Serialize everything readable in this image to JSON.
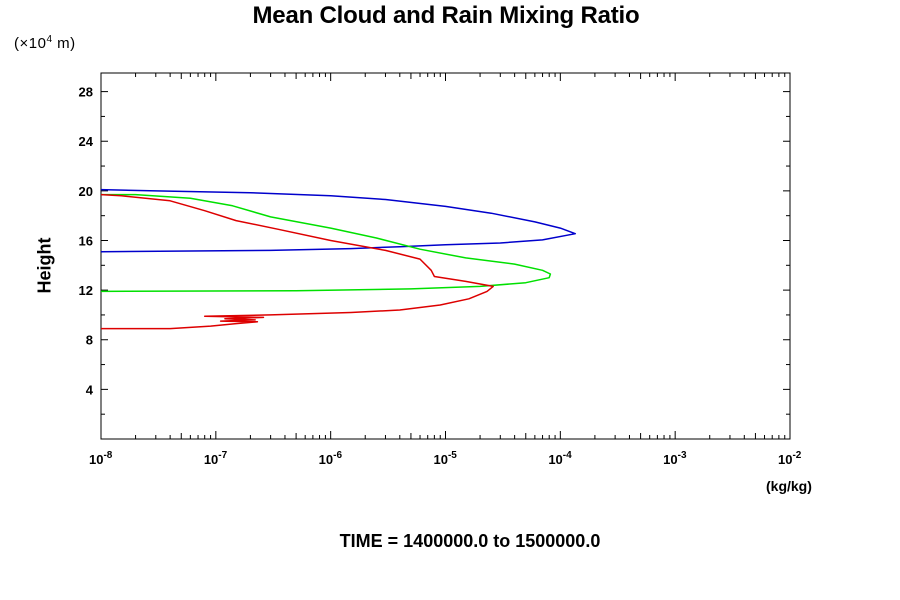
{
  "chart_data": {
    "type": "line",
    "title": "Mean Cloud and Rain Mixing Ratio",
    "ylabel": "Height",
    "y_unit_label": "(×10",
    "y_unit_exp": "4",
    "y_unit_tail": " m)",
    "xlabel_unit": "(kg/kg)",
    "footer": "TIME = 1400000.0 to 1500000.0",
    "x_scale": "log",
    "xlim": [
      1e-08,
      0.01
    ],
    "ylim": [
      0,
      29.5
    ],
    "y_ticks": [
      4,
      8,
      12,
      16,
      20,
      24,
      28
    ],
    "x_ticks": [
      {
        "base": "10",
        "exp": "-8",
        "value": 1e-08
      },
      {
        "base": "10",
        "exp": "-7",
        "value": 1e-07
      },
      {
        "base": "10",
        "exp": "-6",
        "value": 1e-06
      },
      {
        "base": "10",
        "exp": "-5",
        "value": 1e-05
      },
      {
        "base": "10",
        "exp": "-4",
        "value": 0.0001
      },
      {
        "base": "10",
        "exp": "-3",
        "value": 0.001
      },
      {
        "base": "10",
        "exp": "-2",
        "value": 0.01
      }
    ],
    "grid": false,
    "legend": "none",
    "series": [
      {
        "color": "#0000cc",
        "points": [
          [
            1e-08,
            15.1
          ],
          [
            3e-07,
            15.2
          ],
          [
            1.5e-06,
            15.35
          ],
          [
            4e-06,
            15.5
          ],
          [
            1e-05,
            15.65
          ],
          [
            3e-05,
            15.8
          ],
          [
            7e-05,
            16.05
          ],
          [
            0.000135,
            16.55
          ],
          [
            0.0001,
            17.0
          ],
          [
            6e-05,
            17.5
          ],
          [
            2.5e-05,
            18.2
          ],
          [
            1e-05,
            18.75
          ],
          [
            3e-06,
            19.3
          ],
          [
            1e-06,
            19.6
          ],
          [
            2e-07,
            19.85
          ],
          [
            3e-08,
            20.0
          ],
          [
            1e-08,
            20.1
          ]
        ]
      },
      {
        "color": "#00e000",
        "points": [
          [
            1e-08,
            11.9
          ],
          [
            5e-07,
            11.95
          ],
          [
            5e-06,
            12.1
          ],
          [
            2e-05,
            12.3
          ],
          [
            5e-05,
            12.6
          ],
          [
            8e-05,
            13.0
          ],
          [
            8.2e-05,
            13.3
          ],
          [
            7e-05,
            13.6
          ],
          [
            4e-05,
            14.1
          ],
          [
            1.5e-05,
            14.6
          ],
          [
            6e-06,
            15.3
          ],
          [
            2.5e-06,
            16.2
          ],
          [
            1e-06,
            17.0
          ],
          [
            3e-07,
            17.9
          ],
          [
            1.4e-07,
            18.8
          ],
          [
            6e-08,
            19.4
          ],
          [
            2e-08,
            19.7
          ],
          [
            1e-08,
            19.7
          ]
        ]
      },
      {
        "color": "#dd0000",
        "points": [
          [
            1e-08,
            8.9
          ],
          [
            4e-08,
            8.9
          ],
          [
            9e-08,
            9.1
          ],
          [
            1.5e-07,
            9.3
          ],
          [
            2.3e-07,
            9.45
          ],
          [
            1.1e-07,
            9.5
          ],
          [
            2.2e-07,
            9.6
          ],
          [
            1.2e-07,
            9.7
          ],
          [
            2.6e-07,
            9.8
          ],
          [
            1.3e-07,
            9.85
          ],
          [
            8e-08,
            9.9
          ],
          [
            3e-07,
            10.0
          ],
          [
            1.5e-06,
            10.2
          ],
          [
            4e-06,
            10.4
          ],
          [
            9e-06,
            10.8
          ],
          [
            1.6e-05,
            11.3
          ],
          [
            2.3e-05,
            11.9
          ],
          [
            2.6e-05,
            12.3
          ],
          [
            1.5e-05,
            12.7
          ],
          [
            8e-06,
            13.1
          ],
          [
            7.5e-06,
            13.6
          ],
          [
            6e-06,
            14.5
          ],
          [
            3e-06,
            15.2
          ],
          [
            1e-06,
            16.0
          ],
          [
            3.5e-07,
            16.9
          ],
          [
            1.5e-07,
            17.6
          ],
          [
            8e-08,
            18.4
          ],
          [
            4e-08,
            19.2
          ],
          [
            1.5e-08,
            19.6
          ],
          [
            1e-08,
            19.7
          ]
        ]
      }
    ]
  }
}
